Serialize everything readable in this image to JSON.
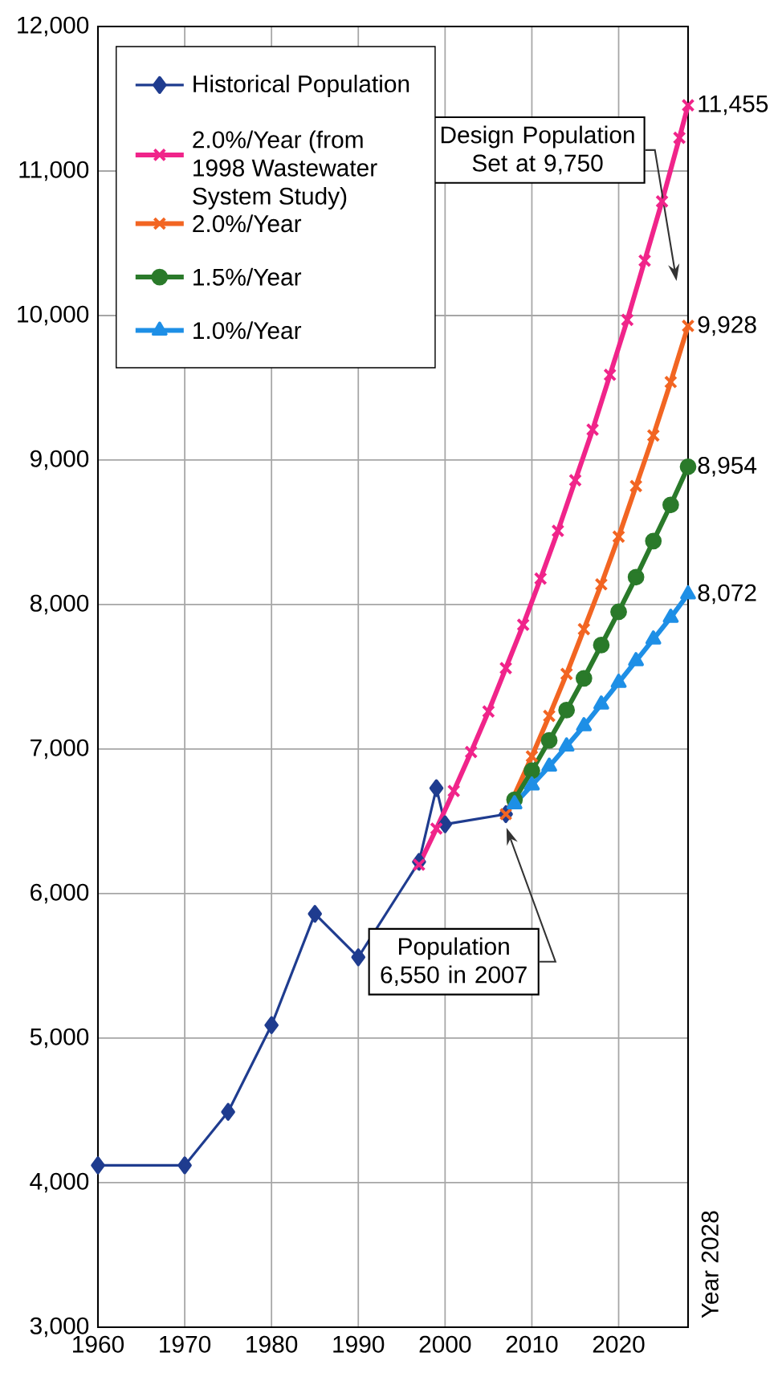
{
  "chart_data": {
    "type": "line",
    "xlim": [
      1960,
      2028
    ],
    "xticks": [
      1960,
      1970,
      1980,
      1990,
      2000,
      2010,
      2020
    ],
    "ylim": [
      3000,
      12000
    ],
    "yticks": [
      {
        "value": 3000,
        "label": "3,000"
      },
      {
        "value": 4000,
        "label": "4,000"
      },
      {
        "value": 5000,
        "label": "5,000"
      },
      {
        "value": 6000,
        "label": "6,000"
      },
      {
        "value": 7000,
        "label": "7,000"
      },
      {
        "value": 8000,
        "label": "8,000"
      },
      {
        "value": 9000,
        "label": "9,000"
      },
      {
        "value": 10000,
        "label": "10,000"
      },
      {
        "value": 11000,
        "label": "11,000"
      },
      {
        "value": 12000,
        "label": "12,000"
      }
    ],
    "grid": true,
    "legend": "top left",
    "series": [
      {
        "name": "Historical Population",
        "color": "#1f3c8f",
        "marker": "diamond",
        "x": [
          1960,
          1970,
          1975,
          1980,
          1985,
          1990,
          1997,
          1999,
          2000,
          2007
        ],
        "values": [
          4120,
          4120,
          4490,
          5090,
          5860,
          5560,
          6220,
          6730,
          6480,
          6550
        ]
      },
      {
        "name": "2.0%/Year (from 1998 Wastewater System Study)",
        "color": "#f0248a",
        "marker": "cross",
        "x": [
          1997,
          1999,
          2001,
          2003,
          2005,
          2007,
          2009,
          2011,
          2013,
          2015,
          2017,
          2019,
          2021,
          2023,
          2025,
          2027,
          2028
        ],
        "values": [
          6200,
          6450,
          6710,
          6980,
          7260,
          7560,
          7860,
          8180,
          8510,
          8860,
          9210,
          9590,
          9970,
          10380,
          10790,
          11230,
          11455
        ],
        "value_labels": [
          null,
          null,
          null,
          null,
          null,
          null,
          null,
          null,
          null,
          null,
          null,
          null,
          null,
          null,
          null,
          null,
          "11,455"
        ]
      },
      {
        "name": "2.0%/Year",
        "color": "#f26522",
        "marker": "cross",
        "x": [
          2007,
          2010,
          2012,
          2014,
          2016,
          2018,
          2020,
          2022,
          2024,
          2026,
          2028
        ],
        "values": [
          6550,
          6950,
          7230,
          7520,
          7830,
          8140,
          8470,
          8820,
          9170,
          9540,
          9928
        ],
        "value_labels": [
          null,
          null,
          null,
          null,
          null,
          null,
          null,
          null,
          null,
          null,
          "9,928"
        ]
      },
      {
        "name": "1.5%/Year",
        "color": "#2a7a2a",
        "marker": "circle",
        "x": [
          2008,
          2010,
          2012,
          2014,
          2016,
          2018,
          2020,
          2022,
          2024,
          2026,
          2028
        ],
        "values": [
          6650,
          6850,
          7060,
          7270,
          7490,
          7720,
          7950,
          8190,
          8440,
          8690,
          8954
        ],
        "value_labels": [
          null,
          null,
          null,
          null,
          null,
          null,
          null,
          null,
          null,
          null,
          "8,954"
        ]
      },
      {
        "name": "1.0%/Year",
        "color": "#1e8fe6",
        "marker": "triangle",
        "x": [
          2008,
          2010,
          2012,
          2014,
          2016,
          2018,
          2020,
          2022,
          2024,
          2026,
          2028
        ],
        "values": [
          6620,
          6750,
          6880,
          7020,
          7160,
          7310,
          7460,
          7610,
          7760,
          7910,
          8072
        ],
        "value_labels": [
          null,
          null,
          null,
          null,
          null,
          null,
          null,
          null,
          null,
          null,
          "8,072"
        ]
      }
    ],
    "annotations": [
      "Design Population Set at 9,750",
      "Population 6,550 in 2007",
      "Year 2028"
    ]
  }
}
